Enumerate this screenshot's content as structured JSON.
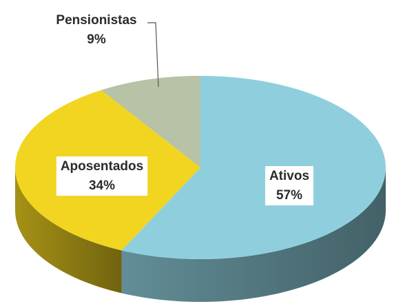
{
  "chart_data": {
    "type": "pie3d",
    "categories": [
      "Ativos",
      "Aposentados",
      "Pensionistas"
    ],
    "values": [
      57,
      34,
      9
    ],
    "value_labels": [
      "57%",
      "34%",
      "9%"
    ],
    "colors": [
      "#8fcfdd",
      "#f1d520",
      "#b7c2a6"
    ]
  }
}
